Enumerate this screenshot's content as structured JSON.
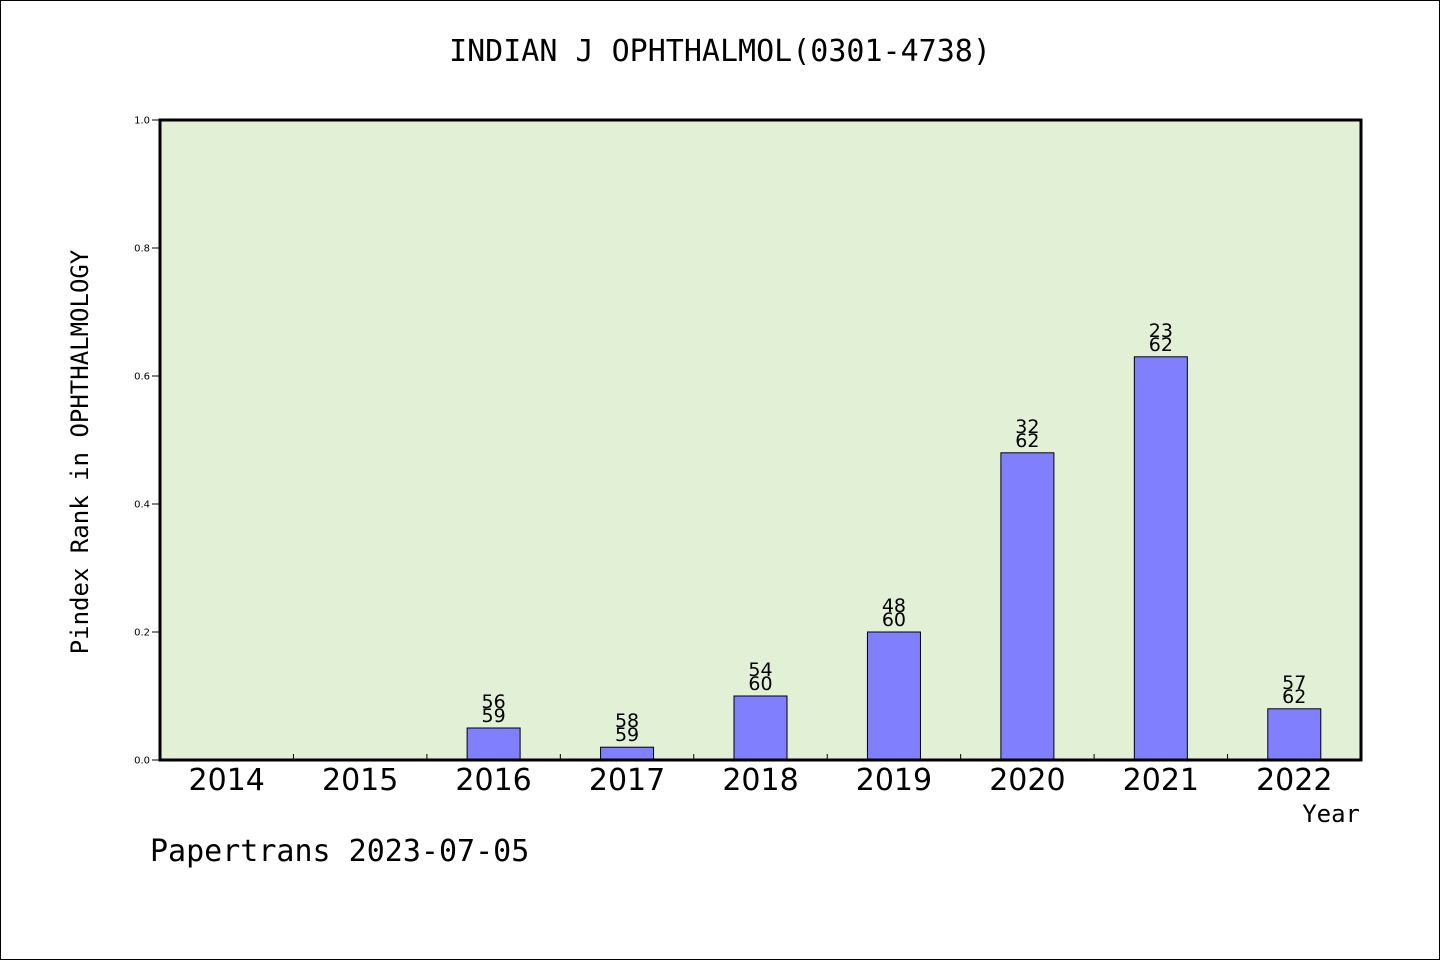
{
  "chart_data": {
    "type": "bar",
    "title": "INDIAN J OPHTHALMOL(0301-4738)",
    "xlabel": "Year",
    "ylabel": "Pindex Rank in OPHTHALMOLOGY",
    "categories": [
      "2014",
      "2015",
      "2016",
      "2017",
      "2018",
      "2019",
      "2020",
      "2021",
      "2022"
    ],
    "values": [
      0,
      0,
      0.05,
      0.02,
      0.1,
      0.2,
      0.48,
      0.63,
      0.08
    ],
    "rank": [
      null,
      null,
      "56",
      "58",
      "54",
      "48",
      "32",
      "23",
      "57"
    ],
    "total": [
      null,
      null,
      "59",
      "59",
      "60",
      "60",
      "62",
      "62",
      "62"
    ],
    "ylim": [
      0,
      1.0
    ],
    "yticks": [
      "0.0",
      "0.2",
      "0.4",
      "0.6",
      "0.8",
      "1.0"
    ],
    "bar_color": "#8080ff",
    "plot_background": "#e2f0d6",
    "grid": false
  },
  "footer": "Papertrans 2023-07-05"
}
